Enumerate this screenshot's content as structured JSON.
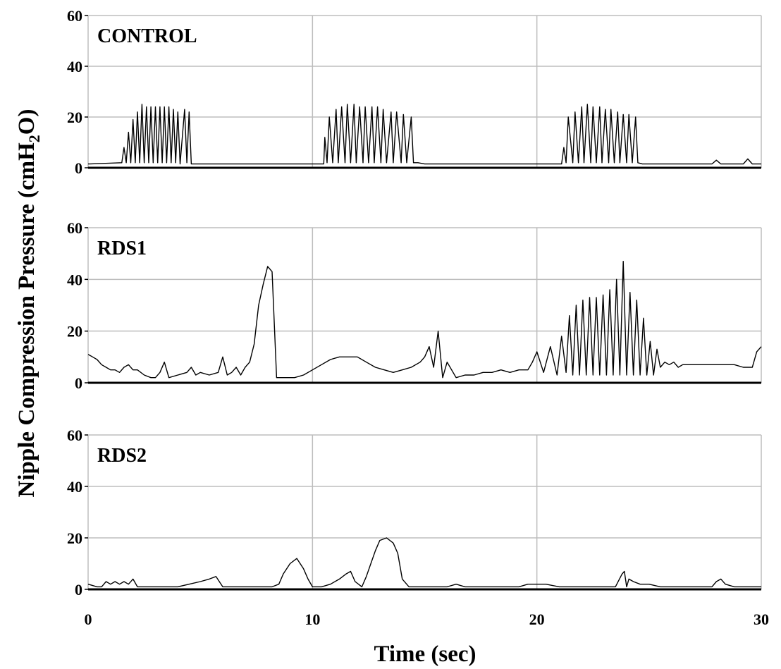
{
  "chart_data": {
    "type": "line",
    "xlabel": "Time (sec)",
    "ylabel": "Nipple Compression Pressure (cmH2O)",
    "xlim": [
      0,
      30
    ],
    "ylim": [
      0,
      60
    ],
    "x_ticks": [
      0,
      10,
      20,
      30
    ],
    "y_ticks": [
      0,
      20,
      40,
      60
    ],
    "grid": true,
    "panels": [
      {
        "label": "CONTROL",
        "x": [
          0,
          1.5,
          1.6,
          1.7,
          1.8,
          1.9,
          2.0,
          2.1,
          2.2,
          2.3,
          2.4,
          2.5,
          2.6,
          2.7,
          2.8,
          2.9,
          3.0,
          3.1,
          3.2,
          3.3,
          3.4,
          3.5,
          3.6,
          3.7,
          3.8,
          3.9,
          4.0,
          4.1,
          4.3,
          4.4,
          4.5,
          4.6,
          5.0,
          9.0,
          10.5,
          10.55,
          10.65,
          10.75,
          10.9,
          11.05,
          11.15,
          11.3,
          11.45,
          11.55,
          11.7,
          11.85,
          11.95,
          12.1,
          12.25,
          12.35,
          12.5,
          12.65,
          12.75,
          12.9,
          13.05,
          13.15,
          13.3,
          13.5,
          13.6,
          13.75,
          13.95,
          14.05,
          14.2,
          14.4,
          14.5,
          14.7,
          15.0,
          20.0,
          21.1,
          21.2,
          21.3,
          21.4,
          21.6,
          21.7,
          21.85,
          22.0,
          22.1,
          22.25,
          22.4,
          22.5,
          22.65,
          22.8,
          22.9,
          23.05,
          23.2,
          23.3,
          23.45,
          23.6,
          23.7,
          23.85,
          24.0,
          24.1,
          24.25,
          24.4,
          24.5,
          24.7,
          25.0,
          27.8,
          28.0,
          28.2,
          29.2,
          29.4,
          29.6,
          30
        ],
        "y": [
          1.5,
          2,
          8,
          2,
          14,
          2,
          19,
          2,
          22,
          2,
          25,
          2,
          24,
          2,
          24,
          2,
          24,
          2,
          24,
          2,
          24,
          2,
          24,
          2,
          23,
          2,
          22,
          1.5,
          23,
          2,
          22,
          1.5,
          1.5,
          1.5,
          1.5,
          12,
          2,
          20,
          2,
          23,
          2,
          24,
          2,
          25,
          2,
          25,
          2,
          24,
          2,
          24,
          2,
          24,
          2,
          24,
          2,
          23,
          2,
          22,
          2,
          22,
          2,
          21,
          2,
          20,
          2,
          2,
          1.5,
          1.5,
          1.5,
          8,
          2,
          20,
          2,
          22,
          2,
          24,
          2,
          25,
          2,
          24,
          2,
          24,
          2,
          23,
          2,
          23,
          2,
          22,
          2,
          21,
          2,
          21,
          2,
          20,
          2,
          1.5,
          1.5,
          1.5,
          3,
          1.5,
          1.5,
          3.5,
          1.5,
          1.5
        ]
      },
      {
        "label": "RDS1",
        "x": [
          0,
          0.2,
          0.4,
          0.6,
          0.8,
          1.0,
          1.2,
          1.4,
          1.6,
          1.8,
          2.0,
          2.2,
          2.5,
          2.8,
          3.0,
          3.2,
          3.4,
          3.6,
          4.0,
          4.4,
          4.6,
          4.8,
          5.0,
          5.4,
          5.8,
          6.0,
          6.2,
          6.4,
          6.6,
          6.8,
          7.0,
          7.2,
          7.4,
          7.6,
          7.8,
          8.0,
          8.2,
          8.4,
          8.8,
          9.2,
          9.6,
          10.0,
          10.4,
          10.8,
          11.2,
          11.6,
          12.0,
          12.4,
          12.8,
          13.2,
          13.6,
          14.0,
          14.4,
          14.8,
          15.0,
          15.2,
          15.4,
          15.6,
          15.8,
          16.0,
          16.4,
          16.8,
          17.2,
          17.6,
          18.0,
          18.4,
          18.8,
          19.2,
          19.6,
          19.8,
          20.0,
          20.3,
          20.6,
          20.9,
          21.1,
          21.3,
          21.45,
          21.6,
          21.75,
          21.9,
          22.05,
          22.2,
          22.35,
          22.5,
          22.65,
          22.8,
          22.95,
          23.1,
          23.25,
          23.4,
          23.55,
          23.7,
          23.85,
          24.0,
          24.15,
          24.3,
          24.45,
          24.6,
          24.75,
          24.9,
          25.05,
          25.2,
          25.35,
          25.5,
          25.7,
          25.9,
          26.1,
          26.3,
          26.5,
          26.8,
          27.2,
          27.6,
          28.0,
          28.4,
          28.8,
          29.2,
          29.6,
          29.8,
          30
        ],
        "y": [
          11,
          10,
          9,
          7,
          6,
          5,
          5,
          4,
          6,
          7,
          5,
          5,
          3,
          2,
          2,
          4,
          8,
          2,
          3,
          4,
          6,
          3,
          4,
          3,
          4,
          10,
          3,
          4,
          6,
          3,
          6,
          8,
          15,
          30,
          38,
          45,
          43,
          2,
          2,
          2,
          3,
          5,
          7,
          9,
          10,
          10,
          10,
          8,
          6,
          5,
          4,
          5,
          6,
          8,
          10,
          14,
          6,
          20,
          2,
          8,
          2,
          3,
          3,
          4,
          4,
          5,
          4,
          5,
          5,
          8,
          12,
          4,
          14,
          3,
          18,
          4,
          26,
          3,
          30,
          3,
          32,
          3,
          33,
          3,
          33,
          3,
          34,
          3,
          36,
          3,
          40,
          3,
          47,
          3,
          35,
          3,
          32,
          3,
          25,
          3,
          16,
          3,
          13,
          6,
          8,
          7,
          8,
          6,
          7,
          7,
          7,
          7,
          7,
          7,
          7,
          6,
          6,
          12,
          14
        ]
      },
      {
        "label": "RDS2",
        "x": [
          0,
          0.4,
          0.6,
          0.8,
          1.0,
          1.2,
          1.4,
          1.6,
          1.8,
          2.0,
          2.2,
          2.6,
          3.0,
          3.5,
          4.0,
          4.5,
          5.0,
          5.4,
          5.7,
          6.0,
          6.3,
          6.8,
          7.2,
          7.8,
          8.2,
          8.5,
          8.7,
          9.0,
          9.3,
          9.6,
          9.8,
          10.0,
          10.4,
          10.8,
          11.2,
          11.5,
          11.7,
          11.9,
          12.2,
          12.4,
          12.6,
          12.8,
          13.0,
          13.3,
          13.6,
          13.8,
          14.0,
          14.3,
          14.8,
          15.5,
          16.0,
          16.4,
          16.8,
          17.5,
          18.5,
          19.2,
          19.6,
          20.0,
          20.4,
          21.0,
          22.0,
          23.0,
          23.5,
          23.8,
          23.9,
          24.0,
          24.1,
          24.3,
          24.6,
          25.0,
          25.5,
          26.0,
          27.0,
          27.8,
          28.0,
          28.2,
          28.4,
          28.8,
          29.5,
          30
        ],
        "y": [
          2,
          1,
          1,
          3,
          2,
          3,
          2,
          3,
          2,
          4,
          1,
          1,
          1,
          1,
          1,
          2,
          3,
          4,
          5,
          1,
          1,
          1,
          1,
          1,
          1,
          2,
          6,
          10,
          12,
          8,
          4,
          1,
          1,
          2,
          4,
          6,
          7,
          3,
          1,
          5,
          10,
          15,
          19,
          20,
          18,
          14,
          4,
          1,
          1,
          1,
          1,
          2,
          1,
          1,
          1,
          1,
          2,
          2,
          2,
          1,
          1,
          1,
          1,
          6,
          7,
          1,
          4,
          3,
          2,
          2,
          1,
          1,
          1,
          1,
          3,
          4,
          2,
          1,
          1,
          1
        ]
      }
    ]
  }
}
